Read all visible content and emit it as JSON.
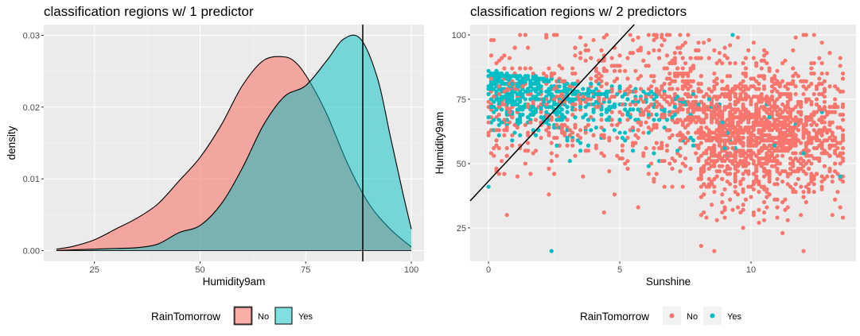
{
  "chart_data": [
    {
      "type": "area",
      "title": "classification regions w/ 1 predictor",
      "xlabel": "Humidity9am",
      "ylabel": "density",
      "xlim": [
        13,
        103
      ],
      "ylim": [
        -0.0015,
        0.0315
      ],
      "x_ticks": [
        25,
        50,
        75,
        100
      ],
      "y_ticks": [
        0.0,
        0.01,
        0.02,
        0.03
      ],
      "x_tick_labels": [
        "25",
        "50",
        "75",
        "100"
      ],
      "y_tick_labels": [
        "0.00",
        "0.01",
        "0.02",
        "0.03"
      ],
      "grid": true,
      "threshold_x": 88.5,
      "legend": {
        "title": "RainTomorrow",
        "position": "bottom"
      },
      "series": [
        {
          "name": "No",
          "color": "#F8766D",
          "x": [
            16,
            20,
            25,
            30,
            35,
            40,
            45,
            50,
            55,
            60,
            65,
            70,
            73,
            76,
            80,
            85,
            90,
            95,
            100
          ],
          "y": [
            0.0002,
            0.0006,
            0.0015,
            0.003,
            0.0045,
            0.0065,
            0.0097,
            0.013,
            0.0175,
            0.023,
            0.0265,
            0.027,
            0.026,
            0.0235,
            0.019,
            0.012,
            0.0065,
            0.003,
            0.0005
          ]
        },
        {
          "name": "Yes",
          "color": "#00BFC4",
          "x": [
            16,
            20,
            25,
            30,
            35,
            40,
            45,
            50,
            55,
            60,
            65,
            70,
            75,
            80,
            84,
            88,
            92,
            95,
            98,
            100
          ],
          "y": [
            0.0,
            0.0001,
            0.0002,
            0.0003,
            0.0004,
            0.0009,
            0.0025,
            0.0035,
            0.0065,
            0.0115,
            0.0175,
            0.0215,
            0.023,
            0.0265,
            0.0295,
            0.0295,
            0.024,
            0.016,
            0.008,
            0.003
          ]
        }
      ]
    },
    {
      "type": "scatter",
      "title": "classification regions w/ 2 predictors",
      "xlabel": "Sunshine",
      "ylabel": "Humidity9am",
      "xlim": [
        -0.7,
        14.0
      ],
      "ylim": [
        12,
        104
      ],
      "x_ticks": [
        0,
        5,
        10
      ],
      "y_ticks": [
        25,
        50,
        75,
        100
      ],
      "x_tick_labels": [
        "0",
        "5",
        "10"
      ],
      "y_tick_labels": [
        "25",
        "50",
        "75",
        "100"
      ],
      "grid": true,
      "boundary_line": {
        "x": [
          -0.7,
          5.55
        ],
        "y": [
          35.5,
          104.0
        ]
      },
      "legend": {
        "title": "RainTomorrow",
        "position": "bottom"
      },
      "series": [
        {
          "name": "No",
          "color": "#F8766D"
        },
        {
          "name": "Yes",
          "color": "#00BFC4"
        }
      ],
      "density_description": "approx. 3000 points; No concentrated around Sunshine 8-13, Humidity 45-85; Yes concentrated at Sunshine 0-4, Humidity 75-100"
    }
  ],
  "legend_left": {
    "title": "RainTomorrow",
    "items": [
      "No",
      "Yes"
    ]
  },
  "legend_right": {
    "title": "RainTomorrow",
    "items": [
      "No",
      "Yes"
    ]
  }
}
